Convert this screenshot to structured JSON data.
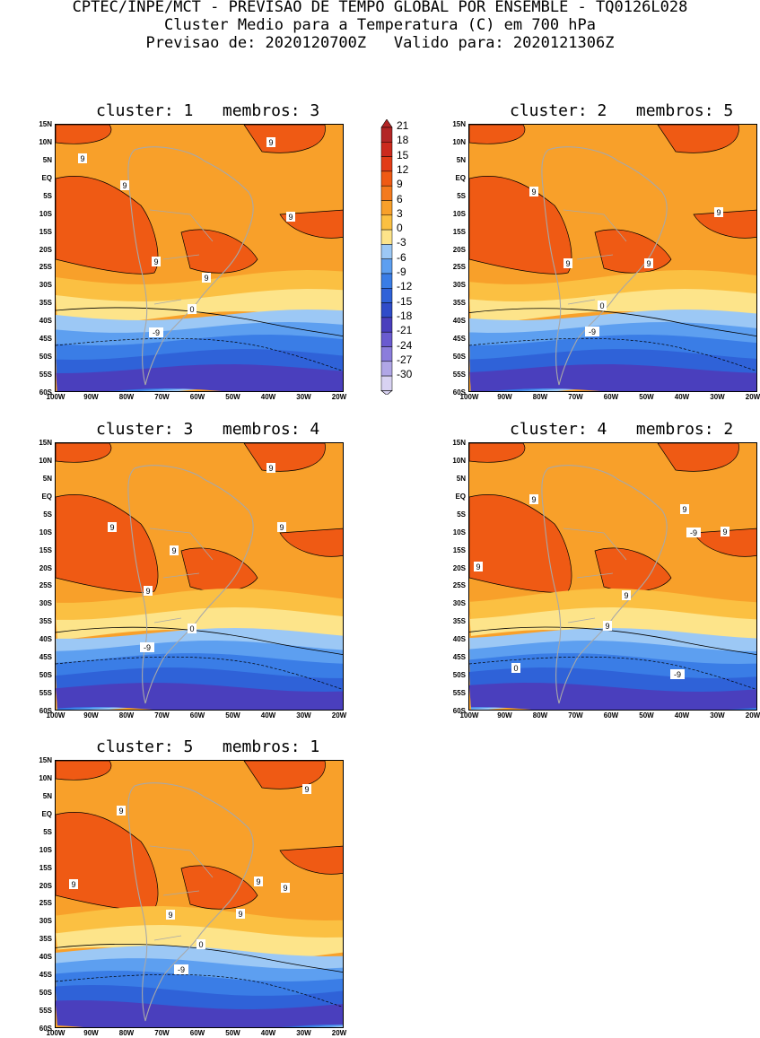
{
  "header": {
    "line1": "CPTEC/INPE/MCT - PREVISAO DE TEMPO GLOBAL POR ENSEMBLE - TQ0126L028",
    "line2": "Cluster Medio para a Temperatura (C) em 700 hPa",
    "line3": "Previsao de: 2020120700Z   Valido para: 2020121306Z"
  },
  "axes": {
    "lat_labels": [
      "15N",
      "10N",
      "5N",
      "EQ",
      "5S",
      "10S",
      "15S",
      "20S",
      "25S",
      "30S",
      "35S",
      "40S",
      "45S",
      "50S",
      "55S",
      "60S"
    ],
    "lon_labels": [
      "100W",
      "90W",
      "80W",
      "70W",
      "60W",
      "50W",
      "40W",
      "30W",
      "20W"
    ]
  },
  "colorbar": {
    "labels": [
      "21",
      "18",
      "15",
      "12",
      "9",
      "6",
      "3",
      "0",
      "-3",
      "-6",
      "-9",
      "-12",
      "-15",
      "-18",
      "-21",
      "-24",
      "-27",
      "-30"
    ],
    "colors": [
      "#b32626",
      "#cc2a1e",
      "#e23c17",
      "#ef5a14",
      "#f47a1e",
      "#f8a02a",
      "#fbc042",
      "#fde48a",
      "#9cc8f5",
      "#5d9ff0",
      "#3a7de6",
      "#2f62d8",
      "#2f4cc9",
      "#4a3fbd",
      "#6a5bd0",
      "#8b7ddc",
      "#b0a6e6",
      "#d8d2f2"
    ]
  },
  "clusters": [
    {
      "label": "cluster: 1   membros: 3",
      "contour_labels": [
        "9",
        "9",
        "9",
        "9",
        "9",
        "9",
        "0",
        "-9"
      ]
    },
    {
      "label": "cluster: 2   membros: 5",
      "contour_labels": [
        "9",
        "9",
        "9",
        "9",
        "0",
        "-9"
      ]
    },
    {
      "label": "cluster: 3   membros: 4",
      "contour_labels": [
        "9",
        "9",
        "9",
        "9",
        "9",
        "0",
        "-9"
      ]
    },
    {
      "label": "cluster: 4   membros: 2",
      "contour_labels": [
        "9",
        "9",
        "9",
        "9",
        "9",
        "9",
        "0",
        "-9",
        "-9"
      ]
    },
    {
      "label": "cluster: 5   membros: 1",
      "contour_labels": [
        "9",
        "9",
        "9",
        "9",
        "9",
        "9",
        "9",
        "0",
        "-9"
      ]
    }
  ]
}
